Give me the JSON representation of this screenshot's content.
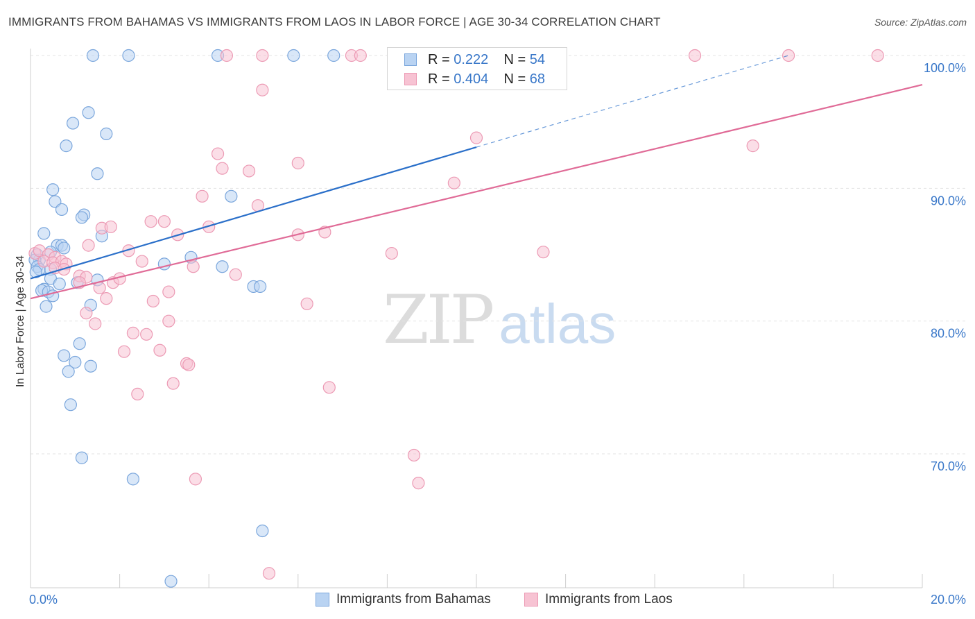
{
  "title": "IMMIGRANTS FROM BAHAMAS VS IMMIGRANTS FROM LAOS IN LABOR FORCE | AGE 30-34 CORRELATION CHART",
  "source": "Source: ZipAtlas.com",
  "watermark": {
    "part1": "ZIP",
    "part2": "atlas"
  },
  "colors": {
    "blue_fill": "#b9d3f2",
    "blue_stroke": "#7aa6dc",
    "blue_line": "#2a6fc9",
    "pink_fill": "#f7c3d3",
    "pink_stroke": "#ec9ab4",
    "pink_line": "#e06b97",
    "tick_text": "#3a78c9",
    "grid": "#e3e3e3"
  },
  "legend": {
    "rows": [
      {
        "r_label": "R = ",
        "r_value": "0.222",
        "n_label": "N = ",
        "n_value": "54"
      },
      {
        "r_label": "R = ",
        "r_value": "0.404",
        "n_label": "N = ",
        "n_value": "68"
      }
    ]
  },
  "chart_data": {
    "type": "scatter",
    "title": "IMMIGRANTS FROM BAHAMAS VS IMMIGRANTS FROM LAOS IN LABOR FORCE | AGE 30-34 CORRELATION CHART",
    "xlabel": "",
    "ylabel": "In Labor Force | Age 30-34",
    "xlim": [
      0,
      20
    ],
    "ylim": [
      60,
      100.5
    ],
    "x_tick_labels": [
      "0.0%",
      "20.0%"
    ],
    "y_ticks": [
      70,
      80,
      90,
      100
    ],
    "y_tick_labels": [
      "70.0%",
      "80.0%",
      "90.0%",
      "100.0%"
    ],
    "series": [
      {
        "name": "Immigrants from Bahamas",
        "color": "blue",
        "points": [
          [
            1.4,
            100
          ],
          [
            2.2,
            100
          ],
          [
            4.2,
            100
          ],
          [
            5.9,
            100
          ],
          [
            6.8,
            100
          ],
          [
            1.3,
            95.7
          ],
          [
            0.95,
            94.9
          ],
          [
            1.7,
            94.1
          ],
          [
            0.8,
            93.2
          ],
          [
            1.5,
            91.1
          ],
          [
            0.5,
            89.9
          ],
          [
            0.55,
            89.0
          ],
          [
            0.7,
            88.4
          ],
          [
            1.2,
            88.0
          ],
          [
            1.15,
            87.8
          ],
          [
            4.5,
            89.4
          ],
          [
            0.3,
            86.6
          ],
          [
            1.6,
            86.4
          ],
          [
            0.6,
            85.7
          ],
          [
            0.7,
            85.7
          ],
          [
            0.75,
            85.5
          ],
          [
            0.45,
            85.2
          ],
          [
            0.15,
            85.0
          ],
          [
            0.2,
            84.6
          ],
          [
            0.1,
            84.6
          ],
          [
            0.15,
            84.1
          ],
          [
            0.2,
            83.9
          ],
          [
            0.45,
            83.9
          ],
          [
            3.6,
            84.8
          ],
          [
            3.0,
            84.3
          ],
          [
            4.3,
            84.1
          ],
          [
            0.45,
            83.2
          ],
          [
            1.5,
            83.1
          ],
          [
            1.05,
            82.9
          ],
          [
            0.65,
            82.8
          ],
          [
            0.3,
            82.4
          ],
          [
            0.25,
            82.3
          ],
          [
            0.4,
            82.2
          ],
          [
            0.5,
            81.9
          ],
          [
            5.0,
            82.6
          ],
          [
            5.15,
            82.6
          ],
          [
            1.35,
            81.2
          ],
          [
            0.35,
            81.1
          ],
          [
            1.1,
            78.3
          ],
          [
            0.75,
            77.4
          ],
          [
            1.0,
            76.9
          ],
          [
            1.35,
            76.6
          ],
          [
            0.85,
            76.2
          ],
          [
            0.9,
            73.7
          ],
          [
            1.15,
            69.7
          ],
          [
            2.3,
            68.1
          ],
          [
            5.2,
            64.2
          ],
          [
            3.15,
            60.4
          ],
          [
            0.12,
            83.7
          ]
        ]
      },
      {
        "name": "Immigrants from Laos",
        "color": "pink",
        "points": [
          [
            4.4,
            100
          ],
          [
            5.2,
            100
          ],
          [
            7.2,
            100
          ],
          [
            7.4,
            100
          ],
          [
            14.9,
            100
          ],
          [
            17.0,
            100
          ],
          [
            19.0,
            100
          ],
          [
            5.2,
            97.4
          ],
          [
            10.0,
            93.8
          ],
          [
            16.2,
            93.2
          ],
          [
            4.2,
            92.6
          ],
          [
            4.3,
            91.5
          ],
          [
            6.0,
            91.9
          ],
          [
            4.9,
            91.3
          ],
          [
            9.5,
            90.4
          ],
          [
            3.85,
            89.4
          ],
          [
            5.1,
            88.7
          ],
          [
            2.7,
            87.5
          ],
          [
            3.0,
            87.5
          ],
          [
            1.6,
            87.0
          ],
          [
            1.8,
            87.1
          ],
          [
            4.0,
            87.1
          ],
          [
            3.3,
            86.5
          ],
          [
            6.0,
            86.5
          ],
          [
            6.6,
            86.7
          ],
          [
            1.3,
            85.7
          ],
          [
            2.2,
            85.3
          ],
          [
            8.1,
            85.1
          ],
          [
            11.5,
            85.2
          ],
          [
            0.1,
            85.1
          ],
          [
            0.2,
            85.3
          ],
          [
            0.4,
            85.0
          ],
          [
            0.55,
            84.8
          ],
          [
            0.3,
            84.5
          ],
          [
            0.5,
            84.4
          ],
          [
            0.7,
            84.5
          ],
          [
            0.8,
            84.3
          ],
          [
            0.55,
            84.0
          ],
          [
            0.75,
            83.9
          ],
          [
            2.5,
            84.5
          ],
          [
            3.65,
            84.1
          ],
          [
            1.1,
            83.4
          ],
          [
            1.25,
            83.3
          ],
          [
            4.6,
            83.5
          ],
          [
            1.1,
            82.9
          ],
          [
            1.85,
            82.9
          ],
          [
            2.0,
            83.2
          ],
          [
            1.55,
            82.5
          ],
          [
            3.1,
            82.2
          ],
          [
            1.7,
            81.7
          ],
          [
            2.75,
            81.5
          ],
          [
            6.2,
            81.3
          ],
          [
            1.25,
            80.6
          ],
          [
            1.45,
            79.8
          ],
          [
            3.1,
            80.0
          ],
          [
            2.3,
            79.1
          ],
          [
            2.6,
            79.0
          ],
          [
            2.1,
            77.7
          ],
          [
            2.9,
            77.8
          ],
          [
            3.5,
            76.8
          ],
          [
            3.55,
            76.7
          ],
          [
            3.2,
            75.3
          ],
          [
            6.7,
            75.0
          ],
          [
            2.4,
            74.5
          ],
          [
            8.6,
            69.9
          ],
          [
            3.7,
            68.1
          ],
          [
            8.7,
            67.8
          ],
          [
            5.35,
            61.0
          ]
        ]
      }
    ],
    "trendlines": [
      {
        "series": "Immigrants from Bahamas",
        "x0": 0,
        "y0": 83.2,
        "x1": 10,
        "y1": 93.1,
        "dashed_to_x": 17,
        "dashed_to_y": 100
      },
      {
        "series": "Immigrants from Laos",
        "x0": 0,
        "y0": 81.7,
        "x1": 20,
        "y1": 97.8
      }
    ],
    "legend_position": "top-center"
  }
}
